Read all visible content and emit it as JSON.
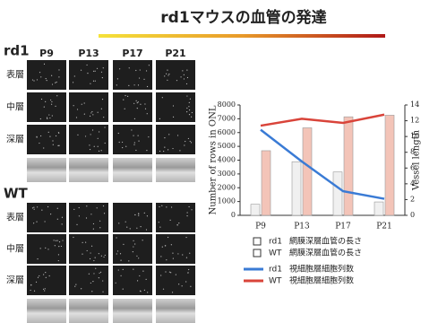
{
  "title": "rd1マウスの血管の発達",
  "columns": [
    "P9",
    "P13",
    "P17",
    "P21"
  ],
  "panels": [
    {
      "label": "rd1",
      "rows": [
        "表層",
        "中層",
        "深層"
      ]
    },
    {
      "label": "WT",
      "rows": [
        "表層",
        "中層",
        "深層"
      ]
    }
  ],
  "chart_data": {
    "type": "bar-line",
    "categories": [
      "P9",
      "P13",
      "P17",
      "P21"
    ],
    "y_label": "Number of rows in ONL",
    "y2_label": "Vessel length",
    "ylim": [
      0,
      8000
    ],
    "yticks": [
      0,
      1000,
      2000,
      3000,
      4000,
      5000,
      6000,
      7000,
      8000
    ],
    "y2lim": [
      0,
      14
    ],
    "y2ticks": [
      0,
      2,
      4,
      6,
      8,
      10,
      12,
      14
    ],
    "series": [
      {
        "name": "rd1",
        "description": "網膜深層血管の長さ",
        "kind": "bar",
        "axis": "y2",
        "color": "#f0f0f0",
        "values": [
          1.4,
          6.8,
          5.5,
          1.7
        ]
      },
      {
        "name": "WT",
        "description": "網膜深層血管の長さ",
        "kind": "bar",
        "axis": "y2",
        "color": "#f3c4b8",
        "values": [
          8.2,
          11.1,
          12.5,
          12.7
        ]
      },
      {
        "name": "rd1",
        "description": "視細胞層細胞列数",
        "kind": "line",
        "color": "#3a7bd5",
        "values": [
          6200,
          3900,
          1750,
          1200
        ]
      },
      {
        "name": "WT",
        "description": "視細胞層細胞列数",
        "kind": "line",
        "color": "#d9443a",
        "values": [
          6500,
          7000,
          6700,
          7300
        ]
      }
    ]
  }
}
